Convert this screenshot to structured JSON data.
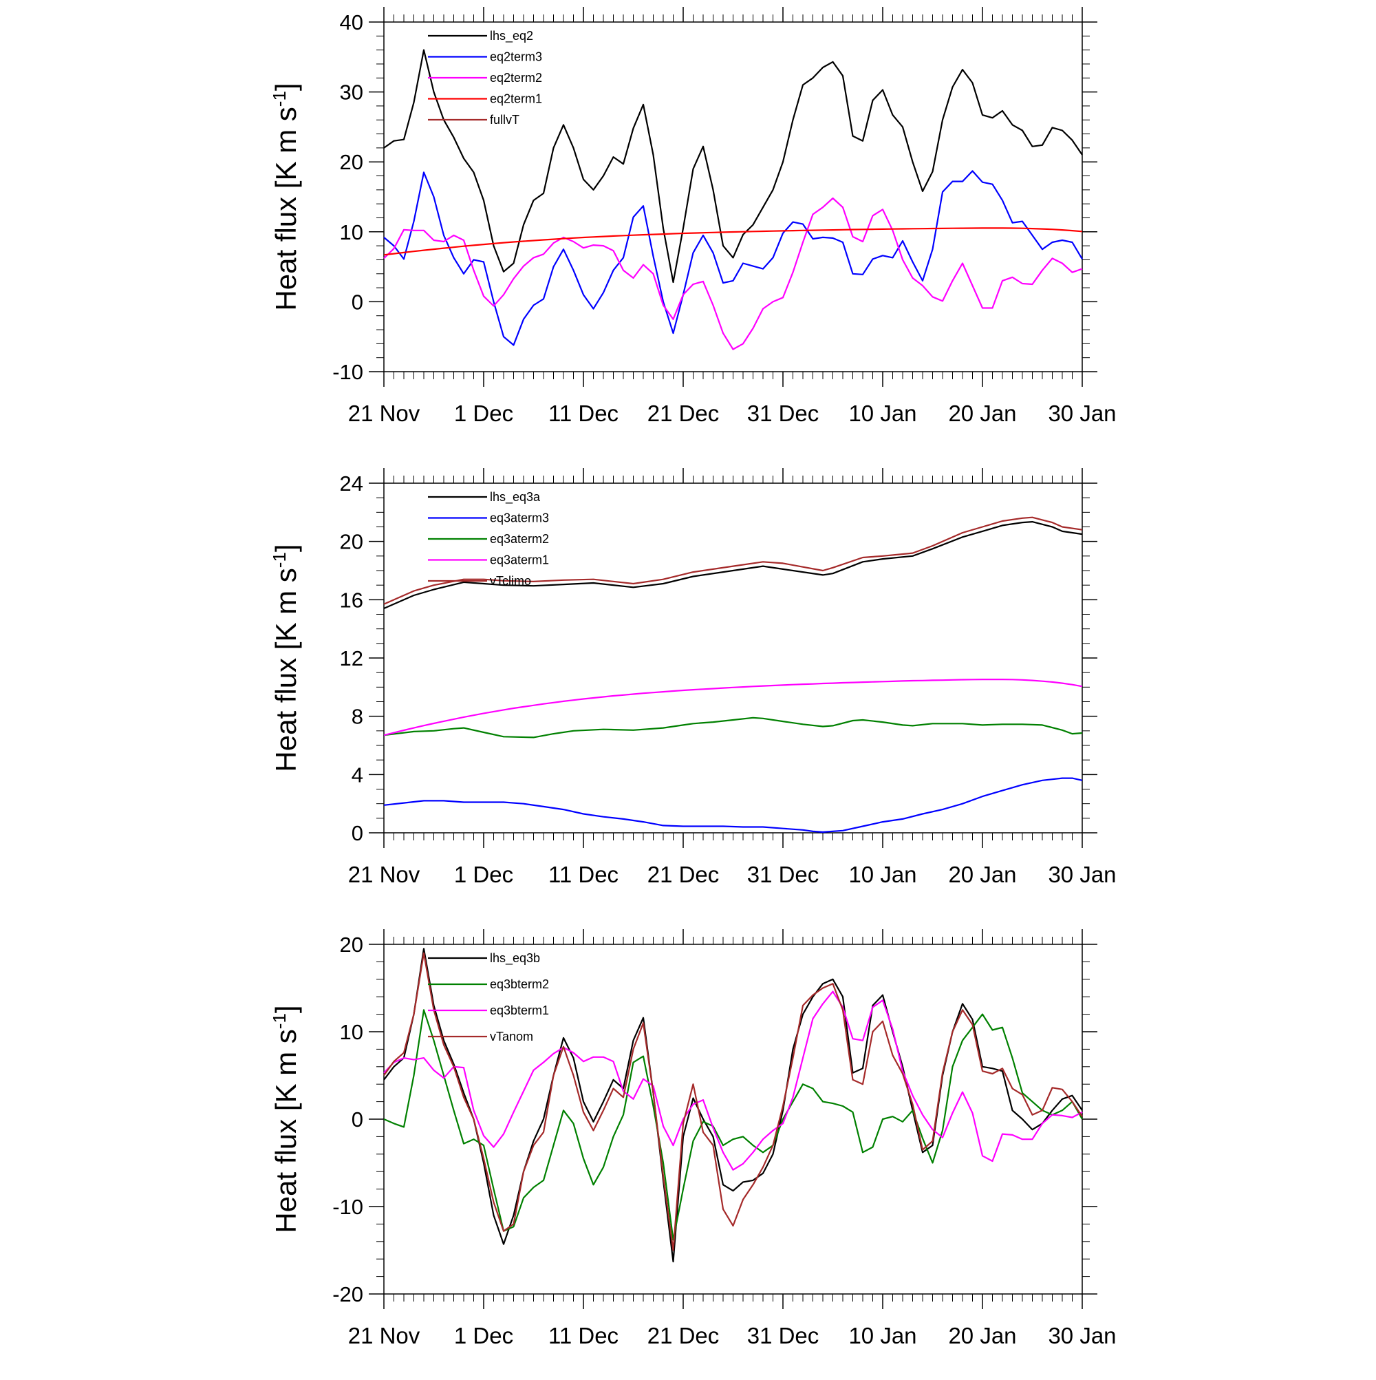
{
  "chart_data": [
    {
      "type": "line",
      "ylabel": "Heat flux [K m s",
      "ylabel_sup": "-1",
      "ylabel_end": "]",
      "ylim": [
        -10,
        40
      ],
      "ymajor": 10,
      "yminor": 2,
      "xlim": [
        0,
        70
      ],
      "xticks": [
        0,
        10,
        20,
        30,
        40,
        50,
        60,
        70
      ],
      "xticklabels": [
        "21 Nov",
        "1 Dec",
        "11 Dec",
        "21 Dec",
        "31 Dec",
        "10 Jan",
        "20 Jan",
        "30 Jan"
      ],
      "grid": false,
      "legend_placement": "top-left",
      "series": [
        {
          "name": "lhs_eq2",
          "color": "#000000",
          "values": [
            22.0,
            23.0,
            23.2,
            28.5,
            36.0,
            30.0,
            26.0,
            23.5,
            20.5,
            18.5,
            14.5,
            8.0,
            4.3,
            5.5,
            11.0,
            14.5,
            15.5,
            22.0,
            25.3,
            22.0,
            17.5,
            16.0,
            18.0,
            20.7,
            19.7,
            24.8,
            28.2,
            21.0,
            10.5,
            2.8,
            10.5,
            19.0,
            22.2,
            16.0,
            8.0,
            6.3,
            9.6,
            11.0,
            13.5,
            16.0,
            20.0,
            26.0,
            31.0,
            32.0,
            33.5,
            34.3,
            32.3,
            23.7,
            23.0,
            28.8,
            30.3,
            26.7,
            25.0,
            20.0,
            15.8,
            18.6,
            26.0,
            30.7,
            33.2,
            31.3,
            26.7,
            26.3,
            27.3,
            25.3,
            24.5,
            22.2,
            22.4,
            24.9,
            24.5,
            23.1,
            21.0
          ]
        },
        {
          "name": "eq2term3",
          "color": "#0000ff",
          "values": [
            9.2,
            8.0,
            6.1,
            11.5,
            18.5,
            15.0,
            9.5,
            6.3,
            4.0,
            6.0,
            5.7,
            0.0,
            -5.0,
            -6.2,
            -2.5,
            -0.5,
            0.4,
            5.0,
            7.5,
            4.5,
            1.0,
            -1.0,
            1.3,
            4.5,
            6.3,
            12.1,
            13.7,
            6.5,
            0.0,
            -4.5,
            1.0,
            7.0,
            9.5,
            7.0,
            2.7,
            3.0,
            5.5,
            5.1,
            4.7,
            6.3,
            9.8,
            11.4,
            11.1,
            9.0,
            9.2,
            9.1,
            8.5,
            4.0,
            3.9,
            6.1,
            6.6,
            6.3,
            8.7,
            5.7,
            3.0,
            7.5,
            15.7,
            17.2,
            17.2,
            18.7,
            17.1,
            16.8,
            14.5,
            11.3,
            11.5,
            9.5,
            7.5,
            8.5,
            8.8,
            8.5,
            6.1
          ]
        },
        {
          "name": "eq2term2",
          "color": "#ff00ff",
          "values": [
            6.2,
            7.6,
            10.3,
            10.2,
            10.2,
            8.8,
            8.6,
            9.5,
            8.8,
            4.5,
            0.8,
            -0.6,
            1.0,
            3.3,
            5.1,
            6.3,
            6.8,
            8.4,
            9.2,
            8.6,
            7.7,
            8.1,
            8.0,
            7.3,
            4.5,
            3.4,
            5.3,
            4.0,
            -0.5,
            -2.5,
            1.0,
            2.5,
            2.9,
            -0.5,
            -4.5,
            -6.8,
            -6.0,
            -3.8,
            -1.0,
            0.0,
            0.6,
            4.2,
            8.5,
            12.5,
            13.5,
            14.8,
            13.5,
            9.3,
            8.6,
            12.3,
            13.2,
            10.2,
            6.0,
            3.4,
            2.3,
            0.7,
            0.1,
            3.0,
            5.5,
            2.3,
            -0.9,
            -0.9,
            3.0,
            3.5,
            2.6,
            2.5,
            4.5,
            6.2,
            5.5,
            4.2,
            4.7
          ]
        },
        {
          "name": "eq2term1",
          "color": "#ff0000",
          "values": [
            6.7,
            6.87,
            7.04,
            7.2,
            7.36,
            7.51,
            7.66,
            7.8,
            7.94,
            8.07,
            8.2,
            8.32,
            8.44,
            8.55,
            8.65,
            8.75,
            8.85,
            8.94,
            9.03,
            9.11,
            9.19,
            9.26,
            9.33,
            9.4,
            9.46,
            9.52,
            9.58,
            9.63,
            9.68,
            9.73,
            9.78,
            9.82,
            9.86,
            9.9,
            9.94,
            9.98,
            10.01,
            10.05,
            10.08,
            10.11,
            10.14,
            10.17,
            10.2,
            10.22,
            10.25,
            10.27,
            10.3,
            10.32,
            10.34,
            10.36,
            10.38,
            10.4,
            10.42,
            10.44,
            10.45,
            10.47,
            10.48,
            10.5,
            10.51,
            10.52,
            10.53,
            10.53,
            10.53,
            10.52,
            10.5,
            10.46,
            10.41,
            10.35,
            10.27,
            10.17,
            10.05
          ]
        },
        {
          "name": "fullvT",
          "color": "#a52a2a",
          "values": []
        }
      ]
    },
    {
      "type": "line",
      "ylabel": "Heat flux [K m s",
      "ylabel_sup": "-1",
      "ylabel_end": "]",
      "ylim": [
        0,
        24
      ],
      "ymajor": 4,
      "yminor": 1,
      "xlim": [
        0,
        70
      ],
      "xticks": [
        0,
        10,
        20,
        30,
        40,
        50,
        60,
        70
      ],
      "xticklabels": [
        "21 Nov",
        "1 Dec",
        "11 Dec",
        "21 Dec",
        "31 Dec",
        "10 Jan",
        "20 Jan",
        "30 Jan"
      ],
      "grid": false,
      "legend_placement": "top-left",
      "series": [
        {
          "name": "lhs_eq3a",
          "color": "#000000",
          "x": [
            0,
            3,
            5,
            8,
            10,
            12,
            15,
            18,
            21,
            25,
            28,
            31,
            35,
            38,
            40,
            44,
            45,
            48,
            50,
            53,
            55,
            58,
            60,
            62,
            64,
            65,
            67,
            68,
            70
          ],
          "values": [
            15.4,
            16.3,
            16.7,
            17.2,
            17.1,
            17.0,
            16.95,
            17.05,
            17.15,
            16.85,
            17.1,
            17.6,
            18.0,
            18.3,
            18.1,
            17.7,
            17.8,
            18.6,
            18.8,
            19.0,
            19.5,
            20.3,
            20.7,
            21.1,
            21.3,
            21.35,
            21.0,
            20.7,
            20.5
          ]
        },
        {
          "name": "eq3aterm3",
          "color": "#0000ff",
          "x": [
            0,
            2,
            4,
            6,
            8,
            10,
            12,
            14,
            16,
            18,
            20,
            22,
            24,
            26,
            28,
            30,
            32,
            34,
            36,
            38,
            40,
            42,
            43,
            44,
            46,
            48,
            50,
            52,
            54,
            56,
            58,
            60,
            62,
            64,
            66,
            68,
            69,
            70
          ],
          "values": [
            1.9,
            2.05,
            2.2,
            2.2,
            2.1,
            2.1,
            2.1,
            2.0,
            1.8,
            1.6,
            1.3,
            1.1,
            0.95,
            0.75,
            0.5,
            0.45,
            0.45,
            0.45,
            0.4,
            0.4,
            0.3,
            0.2,
            0.1,
            0.05,
            0.15,
            0.45,
            0.75,
            0.95,
            1.3,
            1.6,
            2.0,
            2.5,
            2.9,
            3.3,
            3.6,
            3.75,
            3.75,
            3.6
          ]
        },
        {
          "name": "eq3aterm2",
          "color": "#008000",
          "x": [
            0,
            3,
            5,
            7,
            8,
            10,
            12,
            15,
            17,
            19,
            22,
            25,
            28,
            30,
            31,
            33,
            35,
            37,
            38,
            40,
            42,
            44,
            45,
            47,
            48,
            50,
            52,
            53,
            55,
            58,
            60,
            62,
            64,
            66,
            68,
            69,
            70
          ],
          "values": [
            6.7,
            6.95,
            7.0,
            7.15,
            7.2,
            6.9,
            6.6,
            6.55,
            6.8,
            7.0,
            7.1,
            7.05,
            7.2,
            7.4,
            7.5,
            7.6,
            7.75,
            7.9,
            7.85,
            7.65,
            7.45,
            7.3,
            7.35,
            7.7,
            7.75,
            7.6,
            7.4,
            7.35,
            7.5,
            7.5,
            7.4,
            7.45,
            7.45,
            7.4,
            7.05,
            6.8,
            6.85
          ]
        },
        {
          "name": "eq3aterm1",
          "color": "#ff00ff",
          "values": [
            6.7,
            6.87,
            7.04,
            7.2,
            7.36,
            7.51,
            7.66,
            7.8,
            7.94,
            8.07,
            8.2,
            8.32,
            8.44,
            8.55,
            8.65,
            8.75,
            8.85,
            8.94,
            9.03,
            9.11,
            9.19,
            9.26,
            9.33,
            9.4,
            9.46,
            9.52,
            9.58,
            9.63,
            9.68,
            9.73,
            9.78,
            9.82,
            9.86,
            9.9,
            9.94,
            9.98,
            10.01,
            10.05,
            10.08,
            10.11,
            10.14,
            10.17,
            10.2,
            10.22,
            10.25,
            10.27,
            10.3,
            10.32,
            10.34,
            10.36,
            10.38,
            10.4,
            10.42,
            10.44,
            10.45,
            10.47,
            10.48,
            10.5,
            10.51,
            10.52,
            10.53,
            10.53,
            10.53,
            10.52,
            10.5,
            10.46,
            10.41,
            10.35,
            10.27,
            10.17,
            10.05
          ]
        },
        {
          "name": "vTclimo",
          "color": "#a52a2a",
          "x": [
            0,
            3,
            5,
            8,
            10,
            12,
            15,
            18,
            21,
            25,
            28,
            31,
            35,
            38,
            40,
            44,
            45,
            48,
            50,
            53,
            55,
            58,
            60,
            62,
            64,
            65,
            67,
            68,
            70
          ],
          "values": [
            15.7,
            16.6,
            17.0,
            17.4,
            17.4,
            17.3,
            17.25,
            17.35,
            17.4,
            17.1,
            17.4,
            17.9,
            18.3,
            18.6,
            18.5,
            18.0,
            18.2,
            18.9,
            19.0,
            19.2,
            19.7,
            20.6,
            21.0,
            21.4,
            21.6,
            21.65,
            21.3,
            21.0,
            20.8
          ]
        }
      ]
    },
    {
      "type": "line",
      "ylabel": "Heat flux [K m s",
      "ylabel_sup": "-1",
      "ylabel_end": "]",
      "ylim": [
        -20,
        20
      ],
      "ymajor": 10,
      "yminor": 2,
      "xlim": [
        0,
        70
      ],
      "xticks": [
        0,
        10,
        20,
        30,
        40,
        50,
        60,
        70
      ],
      "xticklabels": [
        "21 Nov",
        "1 Dec",
        "11 Dec",
        "21 Dec",
        "31 Dec",
        "10 Jan",
        "20 Jan",
        "30 Jan"
      ],
      "grid": false,
      "legend_placement": "top-left",
      "series": [
        {
          "name": "lhs_eq3b",
          "color": "#000000",
          "values": [
            4.5,
            6.0,
            7.0,
            12.0,
            19.5,
            13.0,
            9.0,
            6.3,
            3.0,
            0.0,
            -5.0,
            -11.0,
            -14.3,
            -11.0,
            -6.0,
            -2.5,
            0.0,
            5.0,
            9.3,
            7.0,
            2.0,
            -0.3,
            2.0,
            4.5,
            3.5,
            9.0,
            11.6,
            3.0,
            -7.0,
            -16.3,
            -2.0,
            2.4,
            0.0,
            -2.0,
            -7.5,
            -8.2,
            -7.2,
            -7.0,
            -6.2,
            -4.0,
            1.0,
            8.0,
            12.0,
            14.0,
            15.5,
            16.0,
            14.0,
            5.3,
            5.8,
            13.0,
            14.2,
            10.0,
            6.0,
            1.0,
            -3.8,
            -3.0,
            5.0,
            10.0,
            13.2,
            11.4,
            6.0,
            5.8,
            5.5,
            1.0,
            0.0,
            -1.2,
            -0.5,
            1.0,
            2.3,
            2.7,
            1.0
          ]
        },
        {
          "name": "eq3bterm2",
          "color": "#008000",
          "values": [
            0.0,
            -0.5,
            -0.9,
            5.0,
            12.5,
            9.0,
            5.0,
            1.0,
            -2.8,
            -2.3,
            -3.0,
            -8.0,
            -12.8,
            -12.3,
            -9.0,
            -7.8,
            -7.0,
            -3.0,
            1.0,
            -0.5,
            -4.5,
            -7.5,
            -5.5,
            -2.0,
            0.5,
            6.5,
            7.2,
            1.5,
            -5.0,
            -13.8,
            -8.0,
            -2.5,
            -0.3,
            -0.8,
            -3.0,
            -2.3,
            -2.0,
            -3.0,
            -3.8,
            -3.0,
            0.0,
            2.0,
            4.0,
            3.5,
            2.0,
            1.8,
            1.5,
            0.8,
            -3.8,
            -3.2,
            0.0,
            0.3,
            -0.3,
            1.0,
            -2.2,
            -5.0,
            -1.3,
            6.0,
            9.0,
            10.5,
            12.0,
            10.2,
            10.5,
            7.0,
            3.0,
            2.0,
            1.0,
            0.5,
            1.0,
            2.0,
            0.0
          ]
        },
        {
          "name": "eq3bterm1",
          "color": "#ff00ff",
          "values": [
            5.3,
            6.5,
            7.0,
            6.8,
            7.0,
            5.6,
            4.7,
            6.0,
            5.9,
            1.0,
            -1.9,
            -3.2,
            -1.7,
            0.8,
            3.2,
            5.6,
            6.5,
            7.5,
            8.2,
            7.6,
            6.6,
            7.1,
            7.1,
            6.6,
            3.2,
            2.3,
            4.6,
            3.8,
            -0.8,
            -3.0,
            0.0,
            1.7,
            2.2,
            -1.0,
            -3.8,
            -5.8,
            -5.1,
            -3.8,
            -2.3,
            -1.3,
            -0.5,
            2.5,
            7.0,
            11.5,
            13.2,
            14.6,
            12.8,
            9.2,
            9.0,
            12.8,
            13.6,
            10.3,
            5.5,
            2.7,
            0.5,
            -1.2,
            -2.1,
            0.7,
            3.1,
            0.7,
            -4.2,
            -4.8,
            -1.7,
            -1.8,
            -2.3,
            -2.3,
            -0.5,
            0.5,
            0.4,
            0.2,
            0.8
          ]
        },
        {
          "name": "vTanom",
          "color": "#a52a2a",
          "values": [
            5.0,
            6.6,
            7.6,
            12.0,
            19.0,
            12.5,
            8.5,
            6.0,
            2.5,
            0.0,
            -4.5,
            -9.5,
            -12.8,
            -12.0,
            -6.0,
            -3.0,
            -1.5,
            5.0,
            8.3,
            5.0,
            0.8,
            -1.3,
            1.0,
            3.5,
            2.5,
            8.0,
            11.0,
            3.0,
            -6.5,
            -15.0,
            -0.5,
            4.0,
            -1.5,
            -3.0,
            -10.3,
            -12.2,
            -9.2,
            -7.5,
            -5.5,
            -3.0,
            1.5,
            7.0,
            13.0,
            14.2,
            15.0,
            15.5,
            12.5,
            4.5,
            4.0,
            10.0,
            11.2,
            7.3,
            5.2,
            1.7,
            -3.5,
            -2.5,
            5.3,
            10.0,
            12.5,
            10.8,
            5.5,
            5.2,
            5.8,
            3.5,
            2.8,
            0.5,
            1.0,
            3.6,
            3.4,
            2.0,
            0.3
          ]
        }
      ]
    }
  ]
}
